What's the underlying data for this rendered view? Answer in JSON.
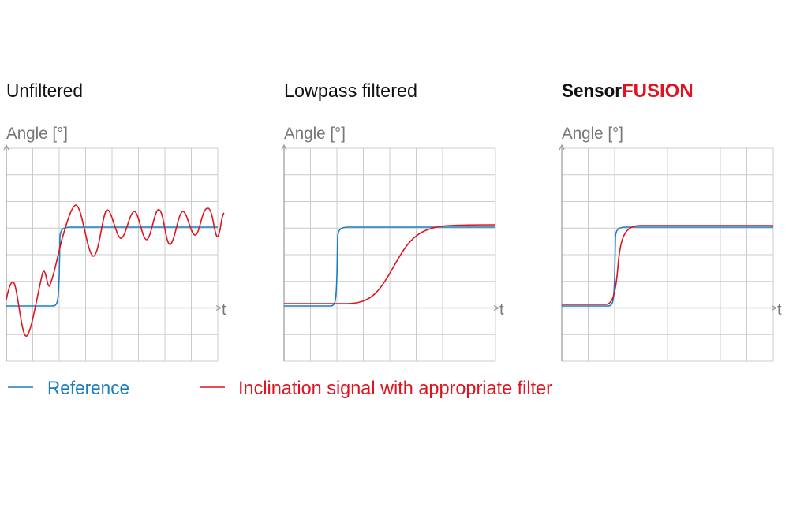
{
  "panels": [
    {
      "title": "Unfiltered",
      "y_label": "Angle [°]",
      "x_label": "t"
    },
    {
      "title": "Lowpass filtered",
      "y_label": "Angle [°]",
      "x_label": "t"
    },
    {
      "title_parts": [
        "Sensor",
        "FUSION"
      ],
      "y_label": "Angle [°]",
      "x_label": "t"
    }
  ],
  "legend": [
    {
      "label": "Reference"
    },
    {
      "label": "Inclination signal with appropriate filter"
    }
  ]
}
